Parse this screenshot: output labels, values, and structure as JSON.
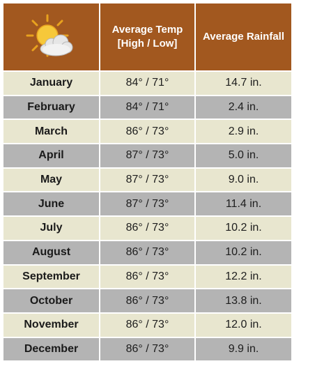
{
  "header": {
    "icon": "sun-behind-cloud-icon",
    "temp_label_line1": "Average Temp",
    "temp_label_line2": "[High / Low]",
    "rain_label": "Average Rainfall"
  },
  "colors": {
    "header_bg": "#a2581f",
    "row_light": "#e8e6cf",
    "row_dark": "#b4b4b4"
  },
  "rows": [
    {
      "month": "January",
      "temp": "84° / 71°",
      "rain": "14.7 in."
    },
    {
      "month": "February",
      "temp": "84° / 71°",
      "rain": "2.4 in."
    },
    {
      "month": "March",
      "temp": "86° / 73°",
      "rain": "2.9 in."
    },
    {
      "month": "April",
      "temp": "87° / 73°",
      "rain": "5.0 in."
    },
    {
      "month": "May",
      "temp": "87° / 73°",
      "rain": "9.0 in."
    },
    {
      "month": "June",
      "temp": "87° / 73°",
      "rain": "11.4 in."
    },
    {
      "month": "July",
      "temp": "86° / 73°",
      "rain": "10.2 in."
    },
    {
      "month": "August",
      "temp": "86° / 73°",
      "rain": "10.2 in."
    },
    {
      "month": "September",
      "temp": "86° / 73°",
      "rain": "12.2 in."
    },
    {
      "month": "October",
      "temp": "86° / 73°",
      "rain": "13.8 in."
    },
    {
      "month": "November",
      "temp": "86° / 73°",
      "rain": "12.0 in."
    },
    {
      "month": "December",
      "temp": "86° / 73°",
      "rain": "9.9 in."
    }
  ]
}
